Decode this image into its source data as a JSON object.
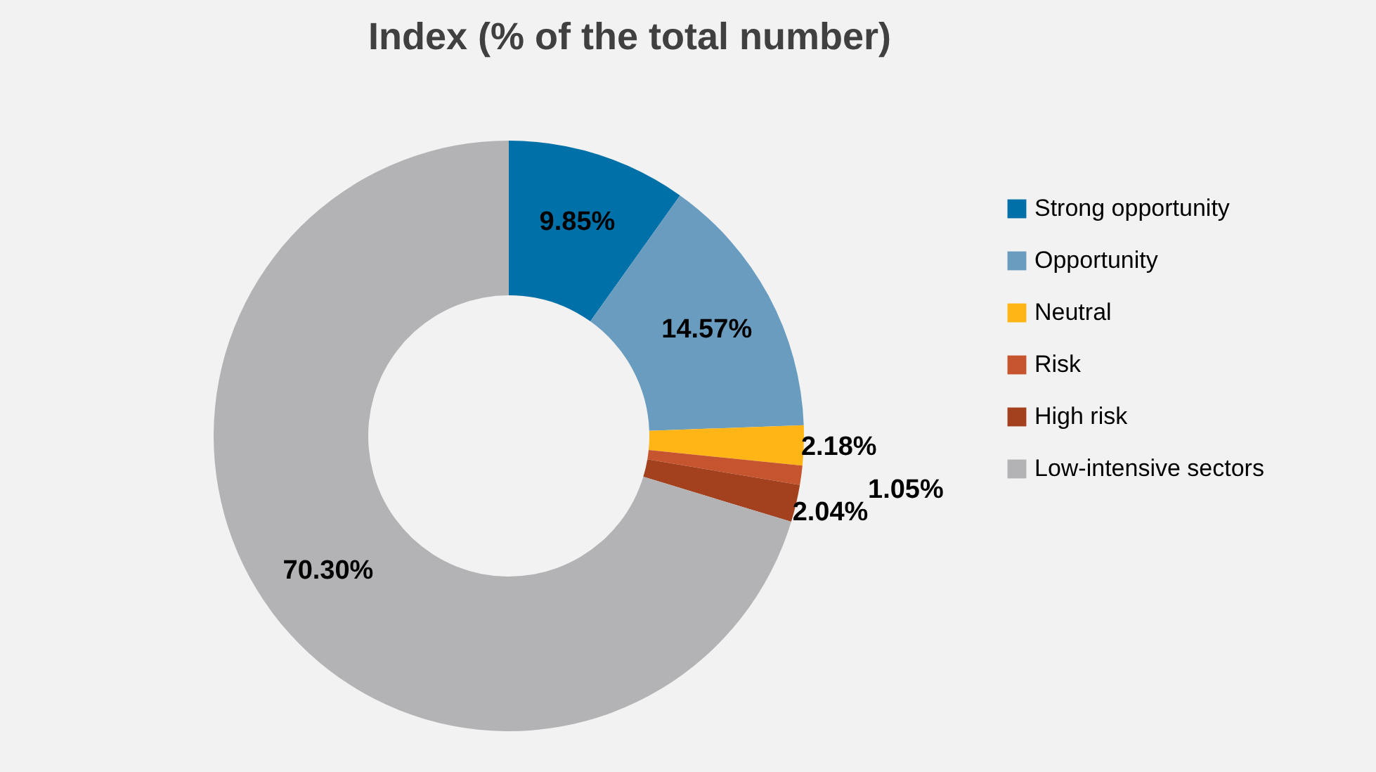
{
  "chart_data": {
    "type": "donut",
    "title": "Index (% of the total number)",
    "categories": [
      "Strong opportunity",
      "Opportunity",
      "Neutral",
      "Risk",
      "High risk",
      "Low-intensive sectors"
    ],
    "values": [
      9.85,
      14.57,
      2.18,
      1.05,
      2.04,
      70.3
    ],
    "colors": [
      "#0070a8",
      "#6a9cbf",
      "#ffb515",
      "#c6552f",
      "#a3411f",
      "#b3b3b5"
    ],
    "value_labels": [
      "9.85%",
      "14.57%",
      "2.18%",
      "1.05%",
      "2.04%",
      "70.30%"
    ],
    "legend": "right"
  }
}
